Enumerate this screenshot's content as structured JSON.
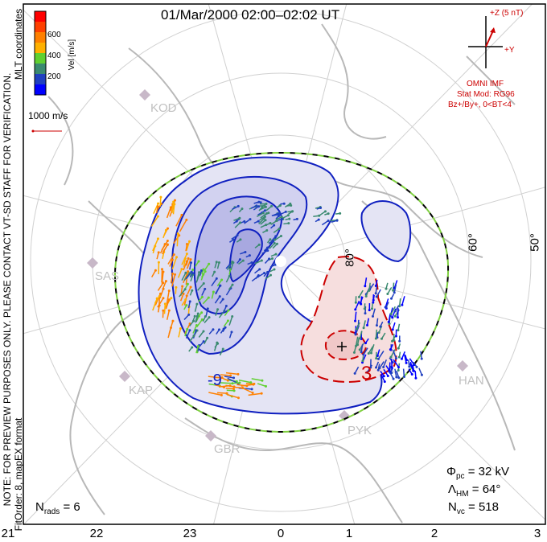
{
  "title": "01/Mar/2000 02:00–02:02 UT",
  "side_note": "NOTE: FOR PREVIEW PURPOSES ONLY. PLEASE CONTACT VT-SD STAFF FOR VERIFICATION.",
  "side_note2": "FitOrder: 8, mapEX format",
  "coords_label": "MLT coordinates",
  "colorbar": {
    "label": "Vel [m/s]",
    "ticks": [
      "200",
      "400",
      "600"
    ],
    "colors": [
      "#0000ff",
      "#2040c0",
      "#3a8a70",
      "#60d030",
      "#ffb000",
      "#ff8000",
      "#ff4000",
      "#ff0000"
    ]
  },
  "scale_vector_label": "1000 m/s",
  "imf": {
    "z_label": "+Z (5 nT)",
    "y_label": "+Y",
    "source": "OMNI IMF",
    "stat_mod": "Stat Mod: RG96",
    "condition": "Bz+/By+, 0<BT<4"
  },
  "lat_labels": [
    "80°",
    "60°",
    "50°"
  ],
  "stations": [
    "KOD",
    "SAS",
    "KAP",
    "GBR",
    "PYK",
    "HAN"
  ],
  "contour_labels": [
    "-9",
    "3"
  ],
  "stats": {
    "phi_pc": "= 32 kV",
    "lambda_hm": "= 64°",
    "n_vc": "= 518",
    "n_rads": "= 6"
  },
  "mlt_ticks": [
    "21",
    "22",
    "23",
    "0",
    "1",
    "2",
    "3"
  ],
  "accent_colors": {
    "positive": "#cc0000",
    "negative": "#0000cc",
    "boundary": "#7fd040"
  }
}
